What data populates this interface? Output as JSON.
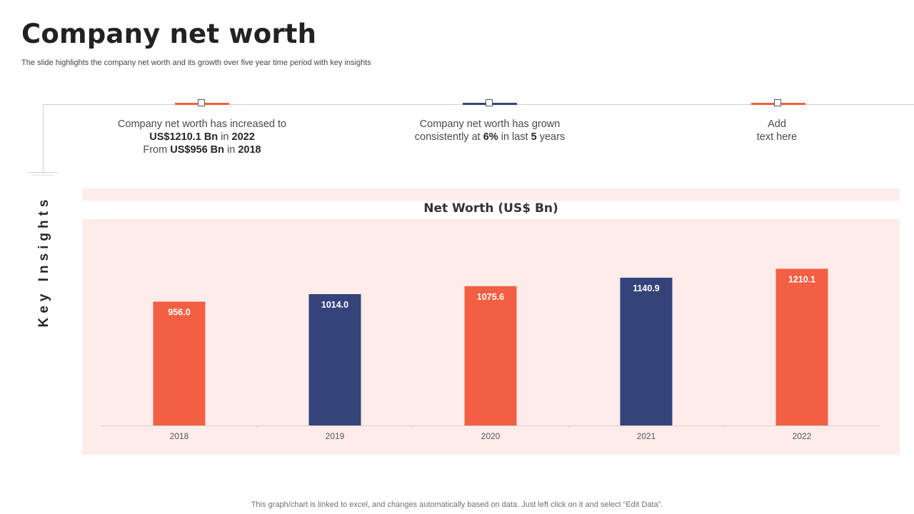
{
  "header": {
    "title": "Company net worth",
    "subtitle": "The slide highlights the company net worth and its growth over five year time period with key insights"
  },
  "side_label": "Key Insights",
  "insights": [
    {
      "line1": "Company net worth has increased to",
      "line2_bold1": "US$1210.1 Bn",
      "line2_mid": " in ",
      "line2_bold2": "2022",
      "line3_pre": "From ",
      "line3_bold1": "US$956 Bn",
      "line3_mid": " in ",
      "line3_bold2": "2018",
      "marker_color": "#f0603f"
    },
    {
      "line1": "Company net worth has grown",
      "line2_pre": "consistently at ",
      "line2_bold1": "6%",
      "line2_mid": " in last ",
      "line2_bold2": "5",
      "line2_post": " years",
      "marker_color": "#34437a"
    },
    {
      "line1": "Add",
      "line2": "text here",
      "marker_color": "#f0603f"
    }
  ],
  "chart_data": {
    "type": "bar",
    "title": "Net Worth (US$ Bn)",
    "categories": [
      "2018",
      "2019",
      "2020",
      "2021",
      "2022"
    ],
    "values": [
      956.0,
      1014.0,
      1075.6,
      1140.9,
      1210.1
    ],
    "data_labels": [
      "956.0",
      "1014.0",
      "1075.6",
      "1140.9",
      "1210.1"
    ],
    "bar_colors": [
      "#f25f42",
      "#34447b",
      "#f25f42",
      "#34447b",
      "#f25f42"
    ],
    "ylim": [
      0,
      1400
    ],
    "xlabel": "",
    "ylabel": "",
    "grid": false,
    "legend": "none"
  },
  "footnote": "This graph/chart is linked to excel,  and changes automatically based on data. Just left click on it and select “Edit Data”."
}
